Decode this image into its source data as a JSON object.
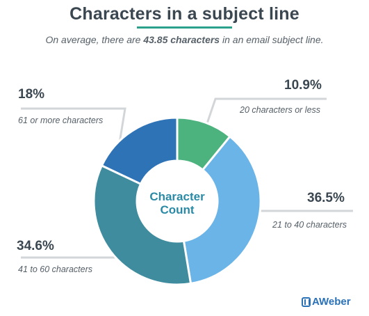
{
  "header": {
    "title": "Characters in a subject line",
    "subtitle_pre": "On average, there are ",
    "subtitle_highlight": "43.85 characters",
    "subtitle_post": " in an email subject line."
  },
  "center_label": {
    "line1": "Character",
    "line2": "Count"
  },
  "brand": {
    "name": "AWeber",
    "color": "#2a71b8"
  },
  "chart_data": {
    "type": "pie",
    "donut": true,
    "categories": [
      "20 characters or less",
      "21 to 40 characters",
      "41 to 60 characters",
      "61 or more characters"
    ],
    "values": [
      10.9,
      36.5,
      34.6,
      18
    ],
    "labels": [
      "10.9%",
      "36.5%",
      "34.6%",
      "18%"
    ],
    "colors": [
      "#4db37e",
      "#6ab4e8",
      "#3f8c9f",
      "#2f73b7"
    ],
    "start": "top, clockwise",
    "leader_line_color": "#d3d6d9"
  }
}
